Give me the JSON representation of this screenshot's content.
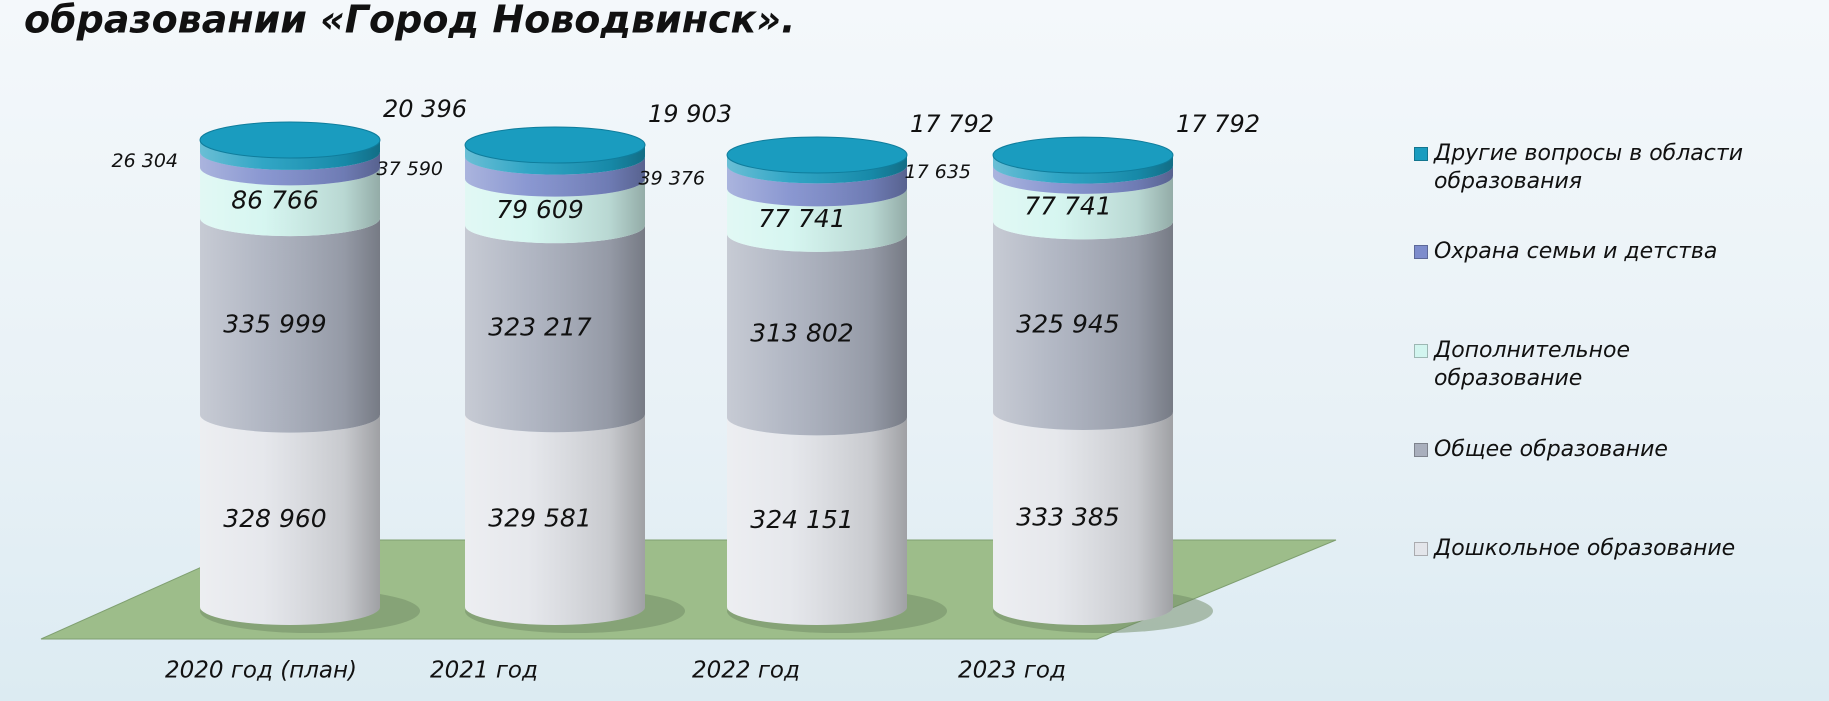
{
  "chart_data": {
    "type": "stacked-cylinder",
    "title": "образовании «Город Новодвинск».",
    "categories": [
      "2020 год (план)",
      "2021 год",
      "2022 год",
      "2023 год"
    ],
    "series": [
      {
        "name": "Дошкольное образование",
        "color": "#e3e5ea",
        "values": [
          328960,
          329581,
          324151,
          333385
        ],
        "value_labels": [
          "328 960",
          "329 581",
          "324 151",
          "333 385"
        ]
      },
      {
        "name": "Общее образование",
        "color": "#a9afbd",
        "values": [
          335999,
          323217,
          313802,
          325945
        ],
        "value_labels": [
          "335 999",
          "323 217",
          "313 802",
          "325 945"
        ]
      },
      {
        "name": "Дополнительное образование",
        "color": "#d2f5ef",
        "values": [
          86766,
          79609,
          77741,
          77741
        ],
        "value_labels": [
          "86 766",
          "79 609",
          "77 741",
          "77 741"
        ]
      },
      {
        "name": "Охрана семьи и детства",
        "color": "#7d8ccc",
        "values": [
          26304,
          37590,
          39376,
          17635
        ],
        "value_labels": [
          "26 304",
          "37 590",
          "39 376",
          "17 635"
        ]
      },
      {
        "name": "Другие вопросы в области образования",
        "color": "#1a9cbf",
        "values": [
          20396,
          19903,
          17792,
          17792
        ],
        "value_labels": [
          "20 396",
          "19 903",
          "17 792",
          "17 792"
        ]
      }
    ],
    "legend": "right"
  }
}
